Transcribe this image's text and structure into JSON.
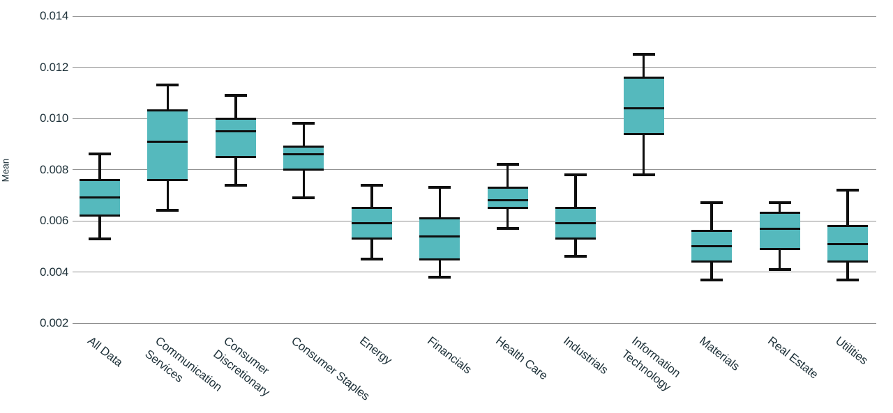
{
  "chart_data": {
    "type": "boxplot",
    "title": "",
    "xlabel": "",
    "ylabel": "Mean",
    "ylim": [
      0.002,
      0.014
    ],
    "grid": "horizontal",
    "legend": "none",
    "colors": {
      "box_fill": "#55b9bd",
      "stroke": "#0e0e0e",
      "gridline": "#8f8f8f",
      "text": "#20333b",
      "background": "#ffffff"
    },
    "yticks": [
      {
        "value": 0.014,
        "label": "0.014"
      },
      {
        "value": 0.012,
        "label": "0.012"
      },
      {
        "value": 0.01,
        "label": "0.010"
      },
      {
        "value": 0.008,
        "label": "0.008"
      },
      {
        "value": 0.006,
        "label": "0.006"
      },
      {
        "value": 0.004,
        "label": "0.004"
      },
      {
        "value": 0.002,
        "label": "0.002"
      }
    ],
    "categories": [
      {
        "label": "All Data",
        "lines": [
          "All Data"
        ],
        "min": 0.0053,
        "q1": 0.0062,
        "median": 0.0069,
        "q3": 0.0076,
        "max": 0.0086
      },
      {
        "label": "Communication Services",
        "lines": [
          "Communication",
          "Services"
        ],
        "min": 0.0064,
        "q1": 0.0076,
        "median": 0.0091,
        "q3": 0.0103,
        "max": 0.0113
      },
      {
        "label": "Consumer Discretionary",
        "lines": [
          "Consumer",
          "Discretionary"
        ],
        "min": 0.0074,
        "q1": 0.0085,
        "median": 0.0095,
        "q3": 0.01,
        "max": 0.0109
      },
      {
        "label": "Consumer Staples",
        "lines": [
          "Consumer Staples"
        ],
        "min": 0.0069,
        "q1": 0.008,
        "median": 0.0086,
        "q3": 0.0089,
        "max": 0.0098
      },
      {
        "label": "Energy",
        "lines": [
          "Energy"
        ],
        "min": 0.0045,
        "q1": 0.0053,
        "median": 0.0059,
        "q3": 0.0065,
        "max": 0.0074
      },
      {
        "label": "Financials",
        "lines": [
          "Financials"
        ],
        "min": 0.0038,
        "q1": 0.0045,
        "median": 0.0054,
        "q3": 0.0061,
        "max": 0.0073
      },
      {
        "label": "Health Care",
        "lines": [
          "Health Care"
        ],
        "min": 0.0057,
        "q1": 0.0065,
        "median": 0.0068,
        "q3": 0.0073,
        "max": 0.0082
      },
      {
        "label": "Industrials",
        "lines": [
          "Industrials"
        ],
        "min": 0.0046,
        "q1": 0.0053,
        "median": 0.0059,
        "q3": 0.0065,
        "max": 0.0078
      },
      {
        "label": "Information Technology",
        "lines": [
          "Information",
          "Technology"
        ],
        "min": 0.0078,
        "q1": 0.0094,
        "median": 0.0104,
        "q3": 0.0116,
        "max": 0.0125
      },
      {
        "label": "Materials",
        "lines": [
          "Materials"
        ],
        "min": 0.0037,
        "q1": 0.0044,
        "median": 0.005,
        "q3": 0.0056,
        "max": 0.0067
      },
      {
        "label": "Real Estate",
        "lines": [
          "Real Estate"
        ],
        "min": 0.0041,
        "q1": 0.0049,
        "median": 0.0057,
        "q3": 0.0063,
        "max": 0.0067
      },
      {
        "label": "Utilities",
        "lines": [
          "Utilities"
        ],
        "min": 0.0037,
        "q1": 0.0044,
        "median": 0.0051,
        "q3": 0.0058,
        "max": 0.0072
      }
    ]
  }
}
